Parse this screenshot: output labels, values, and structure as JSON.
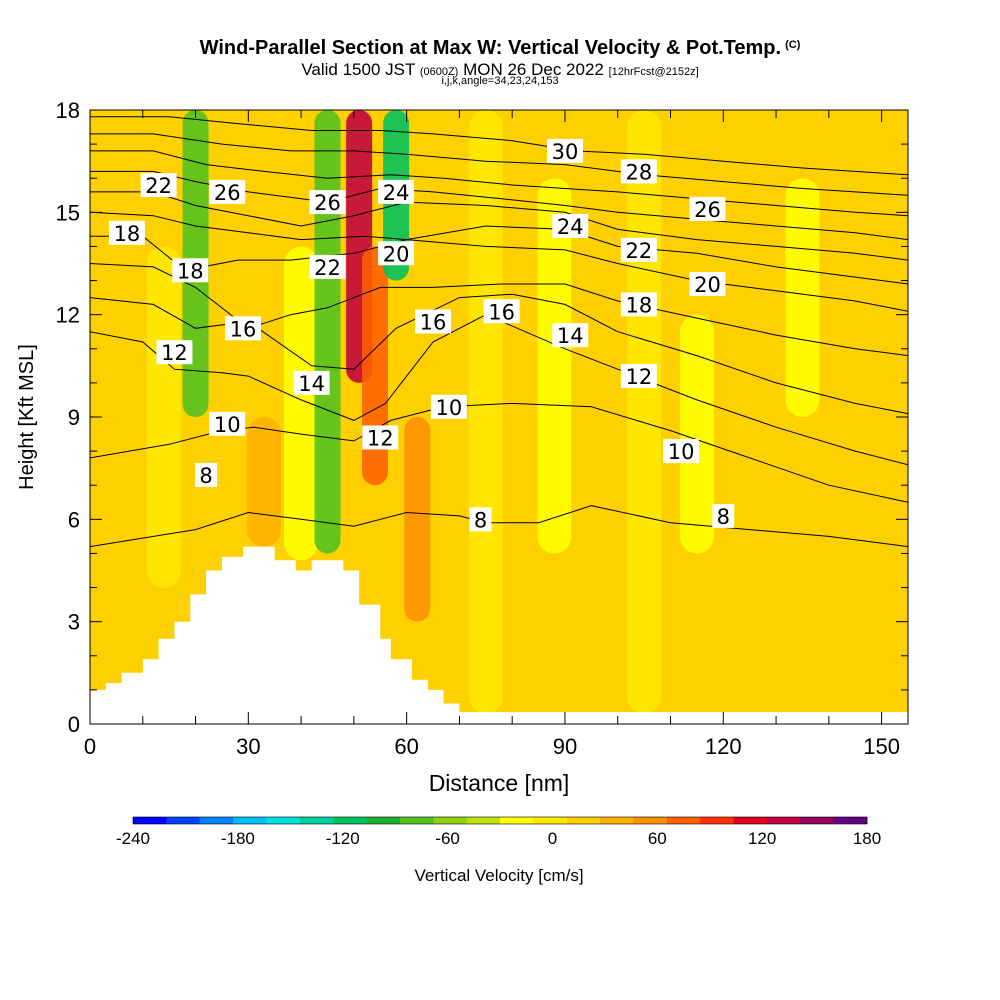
{
  "title": {
    "main": "Wind-Parallel Section at Max W: Vertical Velocity & Pot.Temp.",
    "copyright": "(C)",
    "valid_prefix": "Valid 1500 JST",
    "valid_utc": "(0600Z)",
    "valid_date": "MON 26 Dec 2022",
    "forecast": "[12hrFcst@2152z]",
    "indices": "i,j,k,angle=34,23,24,153"
  },
  "chart_data": {
    "type": "heatmap",
    "xlabel": "Distance [nm]",
    "ylabel": "Height [Kft MSL]",
    "xlim": [
      0,
      155
    ],
    "ylim": [
      0,
      18
    ],
    "x_ticks": [
      "0",
      "30",
      "60",
      "90",
      "120",
      "150"
    ],
    "y_ticks": [
      "0",
      "3",
      "6",
      "9",
      "12",
      "15",
      "18"
    ],
    "colorbar": {
      "label": "Vertical Velocity [cm/s]",
      "ticks": [
        "-240",
        "-180",
        "-120",
        "-60",
        "0",
        "60",
        "120",
        "180"
      ],
      "min": -240,
      "max": 180,
      "step": 20,
      "colors": [
        "#0000ff",
        "#0040ff",
        "#0080ff",
        "#00bfff",
        "#00e0e0",
        "#00d0a0",
        "#00c060",
        "#20b030",
        "#50c020",
        "#90d010",
        "#c0e010",
        "#ffff00",
        "#ffe800",
        "#ffd000",
        "#ffb000",
        "#ff9000",
        "#ff6000",
        "#ff3000",
        "#e00020",
        "#c00040",
        "#900060",
        "#600080"
      ]
    },
    "velocity_field": [
      {
        "x": 5,
        "from_y": 1.2,
        "to_y": 18,
        "value": 25
      },
      {
        "x": 14,
        "from_y": 4,
        "to_y": 14,
        "value": 5
      },
      {
        "x": 20,
        "from_y": 9,
        "to_y": 18,
        "value": -80
      },
      {
        "x": 27,
        "from_y": 5,
        "to_y": 15,
        "value": 20
      },
      {
        "x": 33,
        "from_y": 5.2,
        "to_y": 9,
        "value": 45
      },
      {
        "x": 40,
        "from_y": 4.8,
        "to_y": 14,
        "value": -20
      },
      {
        "x": 45,
        "from_y": 5,
        "to_y": 18,
        "value": -75
      },
      {
        "x": 51,
        "from_y": 10,
        "to_y": 18,
        "value": 150
      },
      {
        "x": 54,
        "from_y": 7,
        "to_y": 14,
        "value": 95
      },
      {
        "x": 58,
        "from_y": 13,
        "to_y": 18,
        "value": -105
      },
      {
        "x": 62,
        "from_y": 3,
        "to_y": 9,
        "value": 65
      },
      {
        "x": 75,
        "from_y": 0.3,
        "to_y": 18,
        "value": 10
      },
      {
        "x": 88,
        "from_y": 5,
        "to_y": 16,
        "value": -15
      },
      {
        "x": 105,
        "from_y": 0.3,
        "to_y": 18,
        "value": 15
      },
      {
        "x": 115,
        "from_y": 5,
        "to_y": 12,
        "value": -15
      },
      {
        "x": 130,
        "from_y": 3,
        "to_y": 8,
        "value": 25
      },
      {
        "x": 135,
        "from_y": 9,
        "to_y": 16,
        "value": -10
      }
    ],
    "theta_contours": [
      {
        "label": "8",
        "pts": [
          [
            0,
            5.2
          ],
          [
            20,
            5.7
          ],
          [
            30,
            6.2
          ],
          [
            40,
            6.0
          ],
          [
            50,
            5.8
          ],
          [
            60,
            6.2
          ],
          [
            70,
            6.1
          ],
          [
            75,
            5.9
          ],
          [
            85,
            5.9
          ],
          [
            95,
            6.4
          ],
          [
            110,
            5.9
          ],
          [
            125,
            5.7
          ],
          [
            140,
            5.5
          ],
          [
            155,
            5.2
          ]
        ]
      },
      {
        "label": "10",
        "pts": [
          [
            0,
            7.8
          ],
          [
            15,
            8.2
          ],
          [
            25,
            8.6
          ],
          [
            31,
            8.7
          ],
          [
            40,
            8.5
          ],
          [
            50,
            8.3
          ],
          [
            57,
            8.9
          ],
          [
            67,
            9.3
          ],
          [
            80,
            9.4
          ],
          [
            95,
            9.3
          ],
          [
            110,
            8.6
          ],
          [
            125,
            7.8
          ],
          [
            140,
            7.0
          ],
          [
            155,
            6.5
          ]
        ]
      },
      {
        "label": "12",
        "pts": [
          [
            0,
            11.5
          ],
          [
            10,
            11.2
          ],
          [
            16,
            10.4
          ],
          [
            25,
            10.3
          ],
          [
            30,
            10.2
          ],
          [
            40,
            9.5
          ],
          [
            50,
            8.9
          ],
          [
            56,
            9.4
          ],
          [
            65,
            11.2
          ],
          [
            75,
            12.0
          ],
          [
            90,
            11.0
          ],
          [
            100,
            10.4
          ],
          [
            115,
            9.5
          ],
          [
            130,
            8.7
          ],
          [
            145,
            8.0
          ],
          [
            155,
            7.6
          ]
        ]
      },
      {
        "label": "14",
        "pts": [
          [
            0,
            12.5
          ],
          [
            12,
            12.3
          ],
          [
            20,
            11.6
          ],
          [
            30,
            11.8
          ],
          [
            42,
            10.5
          ],
          [
            50,
            10.4
          ],
          [
            58,
            11.6
          ],
          [
            70,
            12.5
          ],
          [
            80,
            12.6
          ],
          [
            90,
            12.3
          ],
          [
            100,
            11.5
          ],
          [
            115,
            10.8
          ],
          [
            130,
            10.0
          ],
          [
            145,
            9.4
          ],
          [
            155,
            9.1
          ]
        ]
      },
      {
        "label": "16",
        "pts": [
          [
            0,
            13.5
          ],
          [
            12,
            13.4
          ],
          [
            20,
            12.8
          ],
          [
            30,
            11.6
          ],
          [
            38,
            12.0
          ],
          [
            45,
            12.2
          ],
          [
            55,
            12.8
          ],
          [
            65,
            12.8
          ],
          [
            78,
            12.9
          ],
          [
            90,
            12.9
          ],
          [
            100,
            12.4
          ],
          [
            115,
            11.9
          ],
          [
            130,
            11.4
          ],
          [
            145,
            11.0
          ],
          [
            155,
            10.8
          ]
        ]
      },
      {
        "label": "18",
        "pts": [
          [
            0,
            14.3
          ],
          [
            10,
            14.3
          ],
          [
            18,
            13.3
          ],
          [
            28,
            13.6
          ],
          [
            38,
            13.6
          ],
          [
            50,
            13.8
          ],
          [
            60,
            14.2
          ],
          [
            75,
            14.0
          ],
          [
            90,
            13.9
          ],
          [
            100,
            13.5
          ],
          [
            115,
            13.0
          ],
          [
            130,
            12.7
          ],
          [
            145,
            12.4
          ],
          [
            155,
            12.1
          ]
        ]
      },
      {
        "label": "20",
        "pts": [
          [
            0,
            15.0
          ],
          [
            12,
            14.9
          ],
          [
            20,
            14.6
          ],
          [
            30,
            14.4
          ],
          [
            40,
            14.2
          ],
          [
            52,
            14.3
          ],
          [
            60,
            14.2
          ],
          [
            75,
            14.6
          ],
          [
            90,
            14.5
          ],
          [
            100,
            14.0
          ],
          [
            115,
            13.8
          ],
          [
            130,
            13.4
          ],
          [
            145,
            13.1
          ],
          [
            155,
            12.9
          ]
        ]
      },
      {
        "label": "22",
        "pts": [
          [
            0,
            15.6
          ],
          [
            12,
            15.6
          ],
          [
            20,
            15.2
          ],
          [
            30,
            14.9
          ],
          [
            40,
            14.6
          ],
          [
            50,
            14.9
          ],
          [
            60,
            15.3
          ],
          [
            75,
            15.2
          ],
          [
            90,
            15.0
          ],
          [
            100,
            14.5
          ],
          [
            115,
            14.2
          ],
          [
            130,
            14.0
          ],
          [
            145,
            13.8
          ],
          [
            155,
            13.6
          ]
        ]
      },
      {
        "label": "24",
        "pts": [
          [
            0,
            16.2
          ],
          [
            12,
            16.2
          ],
          [
            20,
            15.9
          ],
          [
            30,
            15.6
          ],
          [
            45,
            15.3
          ],
          [
            55,
            15.7
          ],
          [
            65,
            15.6
          ],
          [
            78,
            15.4
          ],
          [
            90,
            15.2
          ],
          [
            100,
            15.0
          ],
          [
            115,
            14.8
          ],
          [
            130,
            14.6
          ],
          [
            145,
            14.4
          ],
          [
            155,
            14.2
          ]
        ]
      },
      {
        "label": "26",
        "pts": [
          [
            0,
            16.8
          ],
          [
            12,
            16.8
          ],
          [
            22,
            16.4
          ],
          [
            33,
            16.2
          ],
          [
            45,
            16.0
          ],
          [
            57,
            16.1
          ],
          [
            67,
            16.0
          ],
          [
            80,
            15.8
          ],
          [
            90,
            15.7
          ],
          [
            100,
            15.6
          ],
          [
            115,
            15.4
          ],
          [
            130,
            15.2
          ],
          [
            145,
            15.0
          ],
          [
            155,
            14.9
          ]
        ]
      },
      {
        "label": "28",
        "pts": [
          [
            0,
            17.3
          ],
          [
            12,
            17.3
          ],
          [
            25,
            17.0
          ],
          [
            38,
            16.8
          ],
          [
            50,
            16.8
          ],
          [
            60,
            16.7
          ],
          [
            75,
            16.5
          ],
          [
            90,
            16.4
          ],
          [
            105,
            16.1
          ],
          [
            120,
            15.9
          ],
          [
            135,
            15.7
          ],
          [
            155,
            15.5
          ]
        ]
      },
      {
        "label": "30",
        "pts": [
          [
            0,
            17.8
          ],
          [
            15,
            17.8
          ],
          [
            28,
            17.6
          ],
          [
            42,
            17.4
          ],
          [
            55,
            17.4
          ],
          [
            65,
            17.3
          ],
          [
            80,
            17.1
          ],
          [
            92,
            16.8
          ],
          [
            105,
            16.7
          ],
          [
            120,
            16.5
          ],
          [
            135,
            16.3
          ],
          [
            155,
            16.1
          ]
        ]
      }
    ],
    "contour_labels": [
      {
        "text": "8",
        "x": 22,
        "y": 7.3
      },
      {
        "text": "8",
        "x": 74,
        "y": 6.0
      },
      {
        "text": "8",
        "x": 120,
        "y": 6.1
      },
      {
        "text": "10",
        "x": 26,
        "y": 8.8
      },
      {
        "text": "10",
        "x": 68,
        "y": 9.3
      },
      {
        "text": "10",
        "x": 112,
        "y": 8.0
      },
      {
        "text": "12",
        "x": 16,
        "y": 10.9
      },
      {
        "text": "12",
        "x": 55,
        "y": 8.4
      },
      {
        "text": "12",
        "x": 104,
        "y": 10.2
      },
      {
        "text": "14",
        "x": 42,
        "y": 10.0
      },
      {
        "text": "14",
        "x": 91,
        "y": 11.4
      },
      {
        "text": "16",
        "x": 29,
        "y": 11.6
      },
      {
        "text": "16",
        "x": 65,
        "y": 11.8
      },
      {
        "text": "16",
        "x": 78,
        "y": 12.1
      },
      {
        "text": "18",
        "x": 7,
        "y": 14.4
      },
      {
        "text": "18",
        "x": 19,
        "y": 13.3
      },
      {
        "text": "18",
        "x": 104,
        "y": 12.3
      },
      {
        "text": "20",
        "x": 58,
        "y": 13.8
      },
      {
        "text": "20",
        "x": 117,
        "y": 12.9
      },
      {
        "text": "22",
        "x": 13,
        "y": 15.8
      },
      {
        "text": "22",
        "x": 45,
        "y": 13.4
      },
      {
        "text": "22",
        "x": 104,
        "y": 13.9
      },
      {
        "text": "24",
        "x": 58,
        "y": 15.6
      },
      {
        "text": "24",
        "x": 91,
        "y": 14.6
      },
      {
        "text": "26",
        "x": 26,
        "y": 15.6
      },
      {
        "text": "26",
        "x": 45,
        "y": 15.3
      },
      {
        "text": "26",
        "x": 117,
        "y": 15.1
      },
      {
        "text": "28",
        "x": 104,
        "y": 16.2
      },
      {
        "text": "30",
        "x": 90,
        "y": 16.8
      }
    ],
    "terrain": [
      [
        0,
        1
      ],
      [
        3,
        1
      ],
      [
        3,
        1.2
      ],
      [
        6,
        1.2
      ],
      [
        6,
        1.5
      ],
      [
        10,
        1.5
      ],
      [
        10,
        1.9
      ],
      [
        13,
        1.9
      ],
      [
        13,
        2.5
      ],
      [
        16,
        2.5
      ],
      [
        16,
        3.0
      ],
      [
        19,
        3.0
      ],
      [
        19,
        3.8
      ],
      [
        22,
        3.8
      ],
      [
        22,
        4.5
      ],
      [
        25,
        4.5
      ],
      [
        25,
        4.9
      ],
      [
        29,
        4.9
      ],
      [
        29,
        5.2
      ],
      [
        35,
        5.2
      ],
      [
        35,
        4.8
      ],
      [
        39,
        4.8
      ],
      [
        39,
        4.5
      ],
      [
        42,
        4.5
      ],
      [
        42,
        4.8
      ],
      [
        48,
        4.8
      ],
      [
        48,
        4.5
      ],
      [
        51,
        4.5
      ],
      [
        51,
        3.5
      ],
      [
        55,
        3.5
      ],
      [
        55,
        2.5
      ],
      [
        57,
        2.5
      ],
      [
        57,
        1.9
      ],
      [
        61,
        1.9
      ],
      [
        61,
        1.3
      ],
      [
        64,
        1.3
      ],
      [
        64,
        1.0
      ],
      [
        67,
        1.0
      ],
      [
        67,
        0.6
      ],
      [
        70,
        0.6
      ],
      [
        70,
        0.35
      ],
      [
        155,
        0.35
      ]
    ]
  }
}
